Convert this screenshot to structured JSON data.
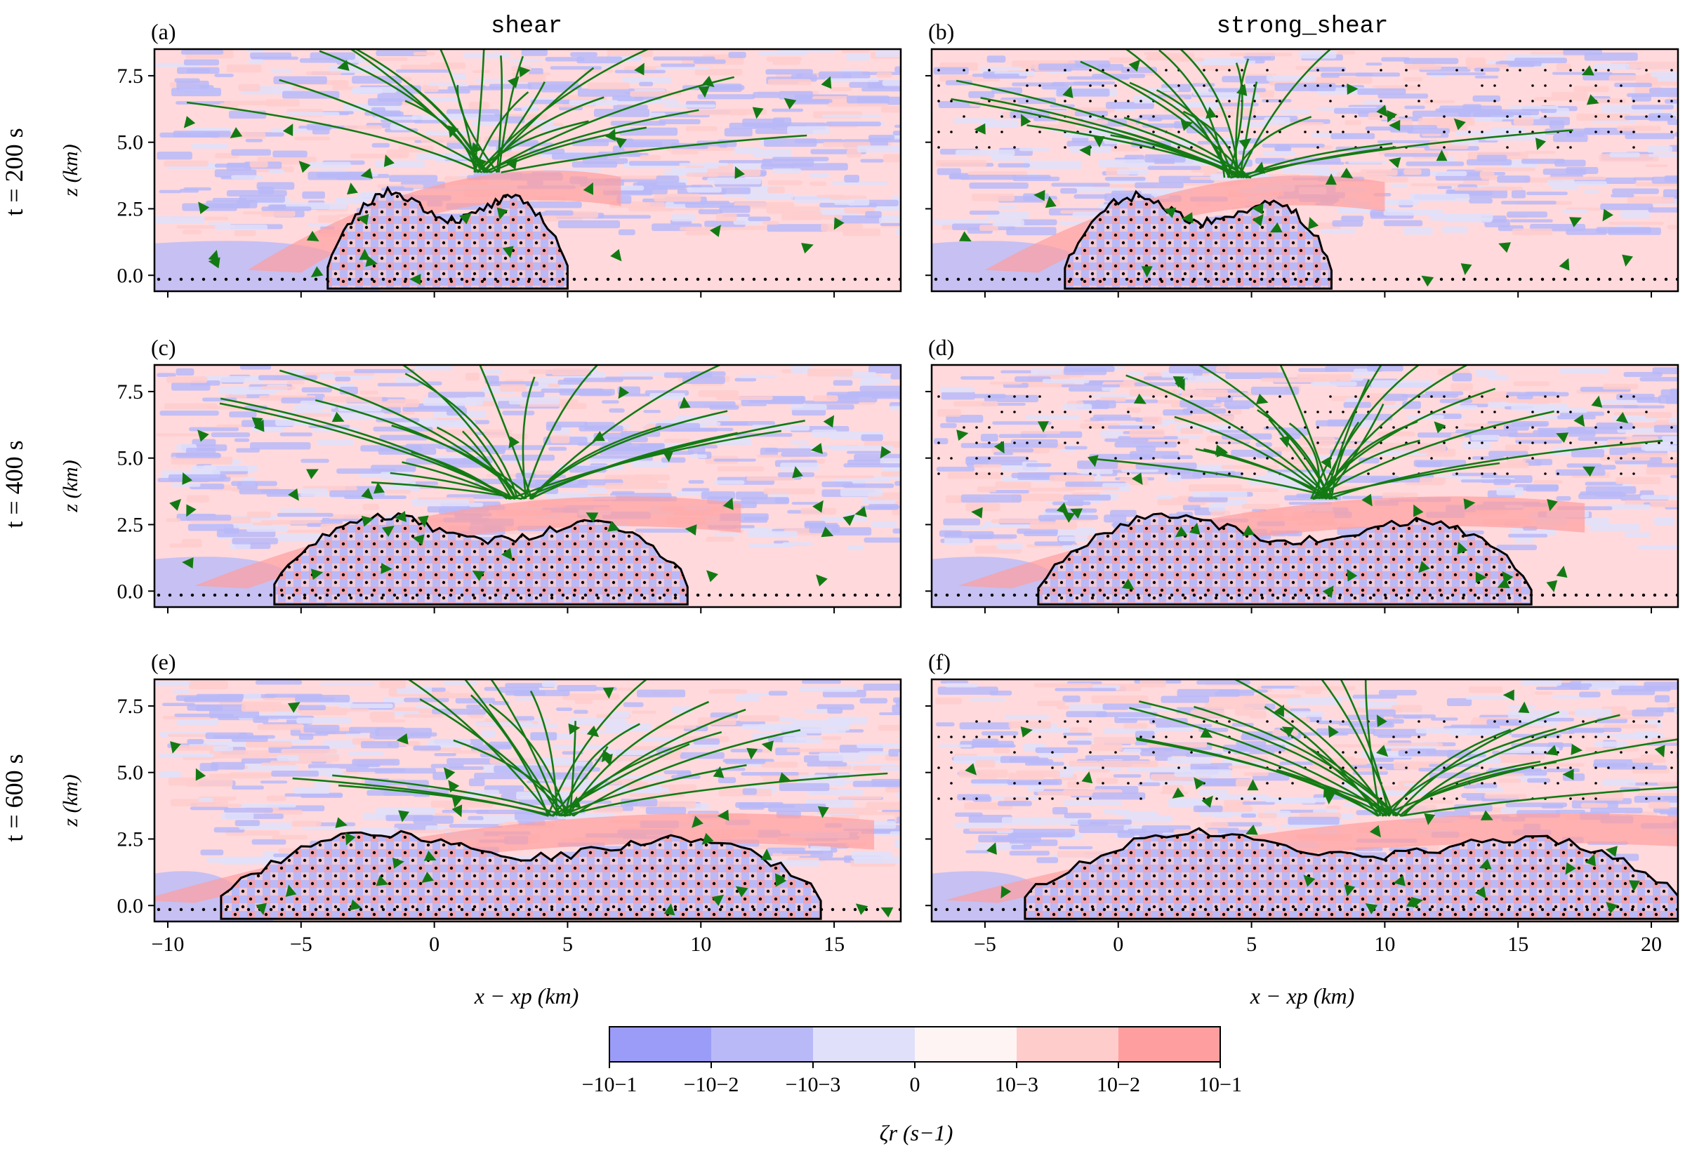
{
  "figure": {
    "row_labels": [
      "t = 200 s",
      "t = 400 s",
      "t = 600 s"
    ],
    "column_titles": [
      "shear",
      "strong_shear"
    ],
    "panel_letters": [
      "(a)",
      "(b)",
      "(c)",
      "(d)",
      "(e)",
      "(f)"
    ],
    "ylabel": "z (km)",
    "xlabel": "x − xp (km)",
    "yticks": [
      "0.0",
      "2.5",
      "5.0",
      "7.5"
    ],
    "xticks_left": [
      "−10",
      "−5",
      "0",
      "5",
      "10",
      "15"
    ],
    "xticks_right": [
      "−5",
      "0",
      "5",
      "10",
      "15",
      "20"
    ]
  },
  "colorbar": {
    "label": "ζr (s−1)",
    "ticks": [
      "−10−1",
      "−10−2",
      "−10−3",
      "0",
      "10−3",
      "10−2",
      "10−1"
    ],
    "colors": [
      "#9b9bf8",
      "#b9b9f8",
      "#e0e0fa",
      "#fff4f4",
      "#ffcccc",
      "#ff9e9e"
    ]
  },
  "chart_data": [
    {
      "type": "heatmap",
      "panel": "(a)",
      "case": "shear",
      "time_s": 200,
      "xlim": [
        -10.5,
        17.5
      ],
      "ylim": [
        -0.6,
        8.5
      ],
      "cloud_extent_x": [
        -4,
        5
      ],
      "cloud_top_z": 4.0
    },
    {
      "type": "heatmap",
      "panel": "(b)",
      "case": "strong_shear",
      "time_s": 200,
      "xlim": [
        -7,
        21
      ],
      "ylim": [
        -0.6,
        8.5
      ],
      "cloud_extent_x": [
        -2,
        8
      ],
      "cloud_top_z": 3.8
    },
    {
      "type": "heatmap",
      "panel": "(c)",
      "case": "shear",
      "time_s": 400,
      "xlim": [
        -10.5,
        17.5
      ],
      "ylim": [
        -0.6,
        8.5
      ],
      "cloud_extent_x": [
        -6,
        9.5
      ],
      "cloud_top_z": 3.6
    },
    {
      "type": "heatmap",
      "panel": "(d)",
      "case": "strong_shear",
      "time_s": 400,
      "xlim": [
        -7,
        21
      ],
      "ylim": [
        -0.6,
        8.5
      ],
      "cloud_extent_x": [
        -3,
        15.5
      ],
      "cloud_top_z": 3.6
    },
    {
      "type": "heatmap",
      "panel": "(e)",
      "case": "shear",
      "time_s": 600,
      "xlim": [
        -10.5,
        17.5
      ],
      "ylim": [
        -0.6,
        8.5
      ],
      "cloud_extent_x": [
        -8,
        14.5
      ],
      "cloud_top_z": 3.5
    },
    {
      "type": "heatmap",
      "panel": "(f)",
      "case": "strong_shear",
      "time_s": 600,
      "xlim": [
        -7,
        21
      ],
      "ylim": [
        -0.6,
        8.5
      ],
      "cloud_extent_x": [
        -3.5,
        21
      ],
      "cloud_top_z": 3.5
    }
  ]
}
